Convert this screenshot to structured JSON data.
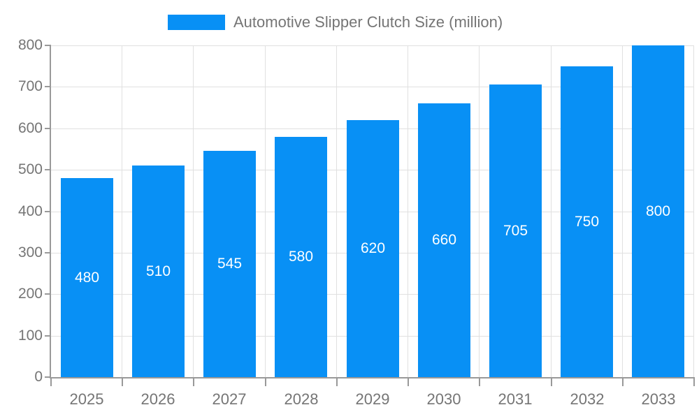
{
  "legend": {
    "label": "Automotive Slipper Clutch Size (million)"
  },
  "chart_data": {
    "type": "bar",
    "title": "",
    "series_name": "Automotive Slipper Clutch Size (million)",
    "categories": [
      "2025",
      "2026",
      "2027",
      "2028",
      "2029",
      "2030",
      "2031",
      "2032",
      "2033"
    ],
    "values": [
      480,
      510,
      545,
      580,
      620,
      660,
      705,
      750,
      800
    ],
    "xlabel": "",
    "ylabel": "",
    "ylim": [
      0,
      800
    ],
    "yticks": [
      0,
      100,
      200,
      300,
      400,
      500,
      600,
      700,
      800
    ],
    "grid": true,
    "legend_position": "top",
    "value_labels": "inside-center",
    "colors": {
      "bar": "#0890f5",
      "axis_line": "#999999",
      "gridline": "#e0e0e0",
      "tick_label": "#757575",
      "value_label": "#ffffff",
      "background": "#ffffff"
    }
  }
}
